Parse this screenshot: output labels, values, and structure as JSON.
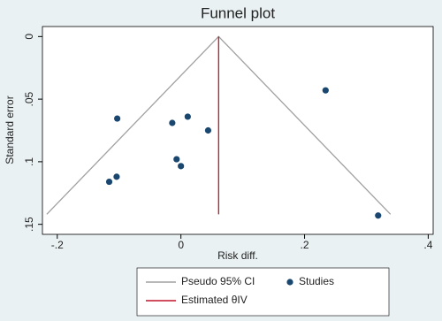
{
  "chart_data": {
    "type": "scatter",
    "title": "Funnel plot",
    "x_label": "Risk diff.",
    "y_label": "Standard error",
    "xlim": [
      -0.224,
      0.408
    ],
    "ylim": [
      0.158,
      -0.008
    ],
    "xticks": [
      {
        "value": -0.2,
        "label": "-.2"
      },
      0,
      {
        "value": 0.2,
        "label": ".2"
      },
      {
        "value": 0.4,
        "label": ".4"
      }
    ],
    "yticks": [
      0,
      {
        "value": 0.05,
        "label": ".05"
      },
      {
        "value": 0.1,
        "label": ".1"
      },
      {
        "value": 0.15,
        "label": ".15"
      }
    ],
    "grid": false,
    "series": [
      {
        "name": "Pseudo 95% CI",
        "color": "#a0a0a0",
        "style": "line",
        "x": [
          -0.217,
          0.061,
          0.339
        ],
        "values": [
          0.142,
          0,
          0.142
        ]
      },
      {
        "name": "Studies",
        "color": "#1a476f",
        "style": "marker",
        "x": [
          -0.103,
          -0.014,
          0.011,
          0.044,
          0.234,
          -0.007,
          0.0,
          -0.104,
          -0.116,
          0.319
        ],
        "values": [
          0.0655,
          0.069,
          0.064,
          0.075,
          0.043,
          0.098,
          0.1035,
          0.112,
          0.116,
          0.143
        ]
      },
      {
        "name": "Estimated θIV",
        "color": "#c0142a",
        "style": "line",
        "x": [
          0.061,
          0.061
        ],
        "values": [
          0,
          0.142
        ]
      }
    ]
  }
}
